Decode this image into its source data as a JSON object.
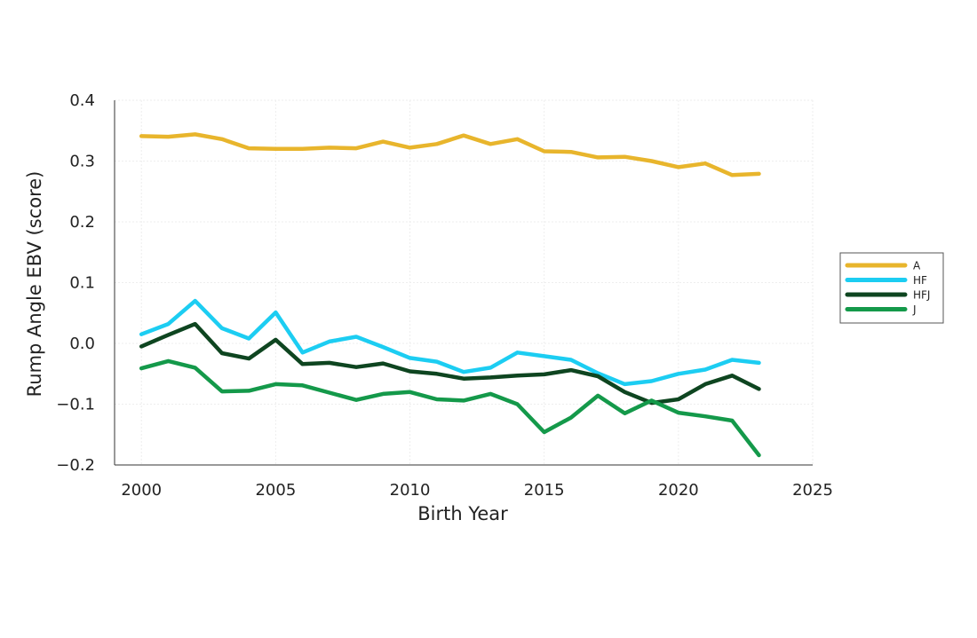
{
  "chart_data": {
    "type": "line",
    "title": "",
    "xlabel": "Birth Year",
    "ylabel": "Rump Angle EBV (score)",
    "xlim": [
      1999,
      2025
    ],
    "ylim": [
      -0.2,
      0.4
    ],
    "xticks": [
      2000,
      2005,
      2010,
      2015,
      2020,
      2025
    ],
    "yticks": [
      0.4,
      0.3,
      0.2,
      0.1,
      0.0,
      -0.1,
      -0.2
    ],
    "ytick_labels": [
      "0.4",
      "0.3",
      "0.2",
      "0.1",
      "0.0",
      "−0.1",
      "−0.2"
    ],
    "grid": true,
    "legend_position": "right",
    "x": [
      2000,
      2001,
      2002,
      2003,
      2004,
      2005,
      2006,
      2007,
      2008,
      2009,
      2010,
      2011,
      2012,
      2013,
      2014,
      2015,
      2016,
      2017,
      2018,
      2019,
      2020,
      2021,
      2022,
      2023
    ],
    "series": [
      {
        "name": "A",
        "color": "#E8B52C",
        "values": [
          0.341,
          0.34,
          0.344,
          0.336,
          0.321,
          0.32,
          0.32,
          0.322,
          0.321,
          0.332,
          0.322,
          0.328,
          0.342,
          0.328,
          0.336,
          0.316,
          0.315,
          0.306,
          0.307,
          0.3,
          0.29,
          0.296,
          0.277,
          0.279
        ]
      },
      {
        "name": "HF",
        "color": "#1CCDF2",
        "values": [
          0.015,
          0.032,
          0.07,
          0.025,
          0.008,
          0.051,
          -0.015,
          0.003,
          0.011,
          -0.006,
          -0.024,
          -0.03,
          -0.047,
          -0.04,
          -0.015,
          -0.021,
          -0.027,
          -0.049,
          -0.067,
          -0.062,
          -0.05,
          -0.043,
          -0.027,
          -0.032
        ]
      },
      {
        "name": "HFJ",
        "color": "#0E4520",
        "values": [
          -0.005,
          0.014,
          0.032,
          -0.016,
          -0.025,
          0.006,
          -0.034,
          -0.032,
          -0.039,
          -0.033,
          -0.046,
          -0.05,
          -0.058,
          -0.056,
          -0.053,
          -0.051,
          -0.044,
          -0.054,
          -0.08,
          -0.098,
          -0.092,
          -0.067,
          -0.053,
          -0.075
        ]
      },
      {
        "name": "J",
        "color": "#14994A",
        "values": [
          -0.041,
          -0.029,
          -0.04,
          -0.079,
          -0.078,
          -0.067,
          -0.069,
          -0.081,
          -0.093,
          -0.083,
          -0.08,
          -0.092,
          -0.094,
          -0.083,
          -0.1,
          -0.146,
          -0.122,
          -0.086,
          -0.115,
          -0.094,
          -0.114,
          -0.12,
          -0.127,
          -0.184
        ]
      }
    ]
  }
}
